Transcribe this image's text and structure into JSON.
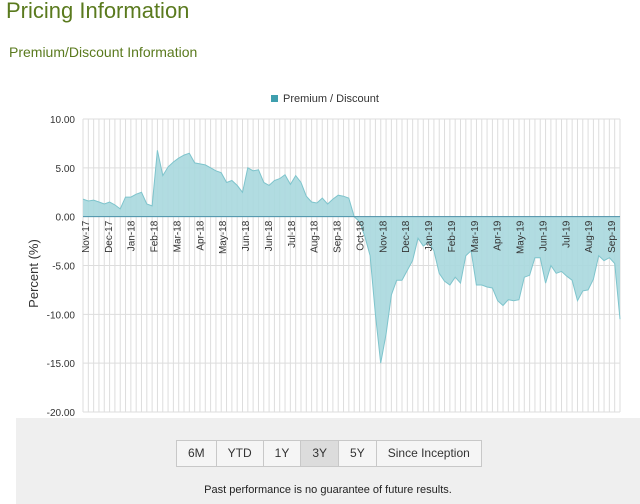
{
  "header": {
    "title": "Pricing Information",
    "subtitle": "Premium/Discount Information"
  },
  "colors": {
    "title": "#5a7a1e",
    "area_fill": "#a8d8de",
    "area_stroke": "#7ec4cc",
    "legend_marker": "#3f9fae"
  },
  "chart_data": {
    "type": "area",
    "title": "",
    "legend": {
      "entries": [
        "Premium / Discount"
      ],
      "position": "top-center"
    },
    "ylabel": "Percent (%)",
    "xlabel": "",
    "ylim": [
      -20,
      10
    ],
    "y_ticks": [
      10,
      5,
      0,
      -5,
      -10,
      -15,
      -20
    ],
    "y_tick_labels": [
      "10.00",
      "5.00",
      "0.00",
      "-5.00",
      "-10.00",
      "-15.00",
      "-20.00"
    ],
    "x_tick_labels": [
      "Nov-17",
      "Dec-17",
      "Jan-18",
      "Feb-18",
      "Mar-18",
      "Apr-18",
      "May-18",
      "Jun-18",
      "Jun-18",
      "Jul-18",
      "Aug-18",
      "Sep-18",
      "Oct-18",
      "Nov-18",
      "Dec-18",
      "Jan-19",
      "Feb-19",
      "Mar-19",
      "Apr-19",
      "May-19",
      "Jun-19",
      "Jul-19",
      "Aug-19",
      "Sep-19"
    ],
    "grid": true,
    "series": [
      {
        "name": "Premium / Discount",
        "values": [
          1.8,
          1.6,
          1.7,
          1.5,
          1.3,
          1.5,
          1.2,
          0.8,
          2.0,
          2.0,
          2.3,
          2.5,
          1.3,
          1.1,
          6.8,
          4.2,
          5.1,
          5.6,
          6.0,
          6.3,
          6.5,
          5.5,
          5.4,
          5.3,
          5.0,
          4.7,
          4.5,
          3.5,
          3.7,
          3.2,
          2.5,
          5.0,
          4.7,
          4.8,
          3.5,
          3.2,
          3.7,
          3.9,
          4.3,
          3.3,
          4.2,
          3.5,
          2.1,
          1.5,
          1.4,
          1.9,
          1.3,
          1.8,
          2.2,
          2.1,
          1.9,
          0.0,
          -0.5,
          -2.0,
          -4.0,
          -10.0,
          -15.0,
          -12.0,
          -8.0,
          -6.5,
          -6.5,
          -5.5,
          -4.5,
          -2.2,
          -3.0,
          -2.6,
          -3.5,
          -5.8,
          -6.6,
          -7.0,
          -6.2,
          -6.8,
          -4.0,
          -3.5,
          -7.0,
          -7.0,
          -7.2,
          -7.3,
          -8.6,
          -9.1,
          -8.5,
          -8.6,
          -8.5,
          -6.2,
          -6.0,
          -4.2,
          -4.2,
          -6.8,
          -5.0,
          -5.8,
          -5.6,
          -6.1,
          -6.5,
          -8.6,
          -7.6,
          -7.5,
          -6.4,
          -4.0,
          -4.5,
          -4.2,
          -4.8,
          -10.5
        ]
      }
    ]
  },
  "range_selector": {
    "buttons": [
      {
        "label": "6M",
        "active": false
      },
      {
        "label": "YTD",
        "active": false
      },
      {
        "label": "1Y",
        "active": false
      },
      {
        "label": "3Y",
        "active": true
      },
      {
        "label": "5Y",
        "active": false
      },
      {
        "label": "Since Inception",
        "active": false
      }
    ]
  },
  "footer": {
    "disclaimer": "Past performance is no guarantee of future results."
  }
}
